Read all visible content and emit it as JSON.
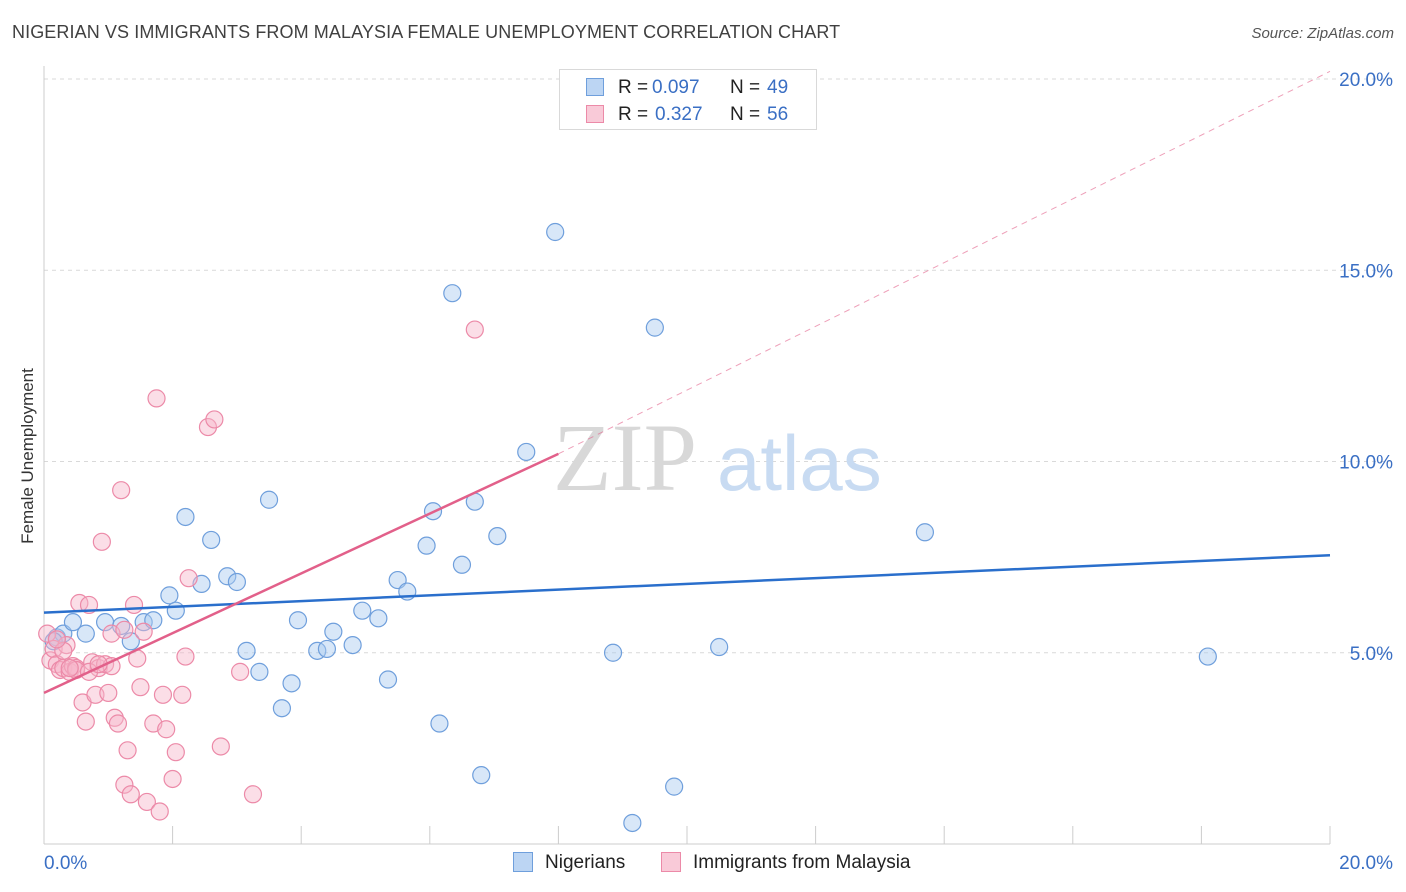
{
  "header": {
    "title": "NIGERIAN VS IMMIGRANTS FROM MALAYSIA FEMALE UNEMPLOYMENT CORRELATION CHART",
    "source": "Source: ZipAtlas.com"
  },
  "watermark": {
    "zip": "ZIP",
    "atlas": "atlas"
  },
  "legend": {
    "nigerians": {
      "r_label": "R =",
      "r_value": "0.097",
      "n_label": "N =",
      "n_value": "49"
    },
    "malaysia": {
      "r_label": "R =",
      "r_value": "0.327",
      "n_label": "N =",
      "n_value": "56"
    }
  },
  "colors": {
    "nigerians_fill": "#a9c9f0",
    "nigerians_stroke": "#6f9fdc",
    "nigerians_line": "#2a6fcc",
    "malaysia_fill": "#f6b6c9",
    "malaysia_stroke": "#ec8aa8",
    "malaysia_line": "#e2608a",
    "axis_label": "#3a6fc4",
    "grid": "#d9d9d9"
  },
  "chart_data": {
    "type": "scatter",
    "title": "NIGERIAN VS IMMIGRANTS FROM MALAYSIA FEMALE UNEMPLOYMENT CORRELATION CHART",
    "xlabel": "",
    "ylabel": "Female Unemployment",
    "xlim": [
      0,
      20
    ],
    "ylim": [
      0,
      20
    ],
    "x_tick_labels": [
      "0.0%",
      "20.0%"
    ],
    "y_tick_values": [
      5,
      10,
      15,
      20
    ],
    "y_tick_labels": [
      "5.0%",
      "10.0%",
      "15.0%",
      "20.0%"
    ],
    "series": [
      {
        "name": "Nigerians",
        "legend_label": "Nigerians",
        "trend": {
          "x": [
            0,
            20
          ],
          "y": [
            6.05,
            7.55
          ],
          "style": "solid"
        },
        "points": [
          [
            0.2,
            5.4
          ],
          [
            0.3,
            5.5
          ],
          [
            0.45,
            5.8
          ],
          [
            0.65,
            5.5
          ],
          [
            0.95,
            5.8
          ],
          [
            1.2,
            5.7
          ],
          [
            1.35,
            5.3
          ],
          [
            1.55,
            5.8
          ],
          [
            1.7,
            5.85
          ],
          [
            1.95,
            6.5
          ],
          [
            2.05,
            6.1
          ],
          [
            2.2,
            8.55
          ],
          [
            2.45,
            6.8
          ],
          [
            2.6,
            7.95
          ],
          [
            2.85,
            7.0
          ],
          [
            3.0,
            6.85
          ],
          [
            3.15,
            5.05
          ],
          [
            3.35,
            4.5
          ],
          [
            3.5,
            9.0
          ],
          [
            3.7,
            3.55
          ],
          [
            3.85,
            4.2
          ],
          [
            3.95,
            5.85
          ],
          [
            4.25,
            5.05
          ],
          [
            4.4,
            5.1
          ],
          [
            4.5,
            5.55
          ],
          [
            4.8,
            5.2
          ],
          [
            4.95,
            6.1
          ],
          [
            5.2,
            5.9
          ],
          [
            5.35,
            4.3
          ],
          [
            5.5,
            6.9
          ],
          [
            5.65,
            6.6
          ],
          [
            5.95,
            7.8
          ],
          [
            6.05,
            8.7
          ],
          [
            6.15,
            3.15
          ],
          [
            6.35,
            14.4
          ],
          [
            6.5,
            7.3
          ],
          [
            6.7,
            8.95
          ],
          [
            6.8,
            1.8
          ],
          [
            7.05,
            8.05
          ],
          [
            7.5,
            10.25
          ],
          [
            7.95,
            16.0
          ],
          [
            8.85,
            5.0
          ],
          [
            9.15,
            0.55
          ],
          [
            9.5,
            13.5
          ],
          [
            9.8,
            1.5
          ],
          [
            10.5,
            5.15
          ],
          [
            13.7,
            8.15
          ],
          [
            18.1,
            4.9
          ],
          [
            0.15,
            5.3
          ]
        ]
      },
      {
        "name": "Immigrants from Malaysia",
        "legend_label": "Immigrants from Malaysia",
        "trend": {
          "x": [
            0,
            8
          ],
          "y": [
            3.95,
            10.2
          ],
          "style": "solid",
          "extrapolated": {
            "x": [
              8,
              20
            ],
            "y": [
              10.2,
              20.2
            ],
            "style": "dashed"
          }
        },
        "points": [
          [
            0.05,
            5.5
          ],
          [
            0.1,
            4.8
          ],
          [
            0.15,
            5.1
          ],
          [
            0.2,
            4.7
          ],
          [
            0.25,
            4.55
          ],
          [
            0.3,
            4.6
          ],
          [
            0.35,
            5.2
          ],
          [
            0.4,
            4.5
          ],
          [
            0.45,
            4.65
          ],
          [
            0.5,
            4.6
          ],
          [
            0.55,
            6.3
          ],
          [
            0.6,
            3.7
          ],
          [
            0.65,
            3.2
          ],
          [
            0.7,
            6.25
          ],
          [
            0.75,
            4.75
          ],
          [
            0.8,
            3.9
          ],
          [
            0.85,
            4.6
          ],
          [
            0.9,
            7.9
          ],
          [
            0.95,
            4.7
          ],
          [
            1.0,
            3.95
          ],
          [
            1.05,
            4.65
          ],
          [
            1.1,
            3.3
          ],
          [
            1.15,
            3.15
          ],
          [
            1.2,
            9.25
          ],
          [
            1.25,
            1.55
          ],
          [
            1.3,
            2.45
          ],
          [
            1.35,
            1.3
          ],
          [
            1.4,
            6.25
          ],
          [
            1.45,
            4.85
          ],
          [
            1.5,
            4.1
          ],
          [
            1.55,
            5.55
          ],
          [
            1.6,
            1.1
          ],
          [
            1.7,
            3.15
          ],
          [
            1.75,
            11.65
          ],
          [
            1.8,
            0.85
          ],
          [
            1.85,
            3.9
          ],
          [
            1.9,
            3.0
          ],
          [
            2.0,
            1.7
          ],
          [
            2.05,
            2.4
          ],
          [
            2.15,
            3.9
          ],
          [
            2.2,
            4.9
          ],
          [
            2.25,
            6.95
          ],
          [
            2.55,
            10.9
          ],
          [
            2.65,
            11.1
          ],
          [
            2.75,
            2.55
          ],
          [
            3.25,
            1.3
          ],
          [
            3.05,
            4.5
          ],
          [
            0.3,
            5.05
          ],
          [
            0.5,
            4.55
          ],
          [
            0.7,
            4.5
          ],
          [
            1.05,
            5.5
          ],
          [
            1.25,
            5.6
          ],
          [
            6.7,
            13.45
          ],
          [
            0.4,
            4.6
          ],
          [
            0.2,
            5.35
          ],
          [
            0.85,
            4.7
          ]
        ]
      }
    ]
  }
}
